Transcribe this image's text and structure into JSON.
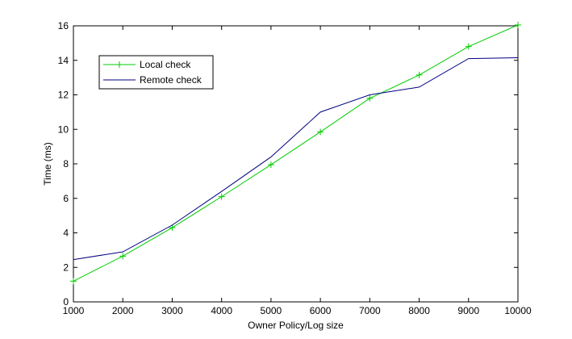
{
  "chart_data": {
    "type": "line",
    "title": "",
    "xlabel": "Owner Policy/Log size",
    "ylabel": "Time (ms)",
    "xlim": [
      1000,
      10000
    ],
    "ylim": [
      0,
      16
    ],
    "x": [
      1000,
      2000,
      3000,
      4000,
      5000,
      6000,
      7000,
      8000,
      9000,
      10000
    ],
    "xticks": [
      "1000",
      "2000",
      "3000",
      "4000",
      "5000",
      "6000",
      "7000",
      "8000",
      "9000",
      "10000"
    ],
    "yticks": [
      "0",
      "2",
      "4",
      "6",
      "8",
      "10",
      "12",
      "14",
      "16"
    ],
    "grid": false,
    "legend_position": "top-left",
    "series": [
      {
        "name": "Local check",
        "color": "#00cc00",
        "marker": "plus",
        "values": [
          1.2,
          2.65,
          4.3,
          6.1,
          7.95,
          9.85,
          11.8,
          13.15,
          14.8,
          16.05
        ]
      },
      {
        "name": "Remote check",
        "color": "#000080",
        "marker": "none",
        "values": [
          2.45,
          2.9,
          4.45,
          6.4,
          8.4,
          11.0,
          12.0,
          12.45,
          14.1,
          14.15
        ]
      }
    ]
  }
}
